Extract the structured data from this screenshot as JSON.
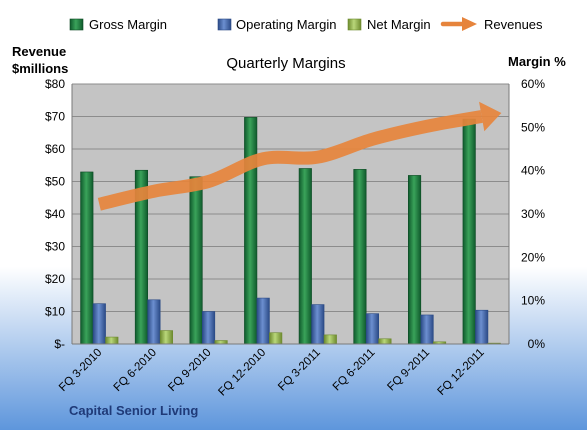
{
  "chart_data": {
    "type": "bar",
    "title": "Quarterly Margins",
    "company": "Capital Senior Living",
    "left_axis_label": [
      "Revenue",
      "$millions"
    ],
    "right_axis_label": "Margin %",
    "categories": [
      "FQ 3-2010",
      "FQ 6-2010",
      "FQ 9-2010",
      "FQ 12-2010",
      "FQ 3-2011",
      "FQ 6-2011",
      "FQ 9-2011",
      "FQ 12-2011"
    ],
    "left_ticks": [
      "$-",
      "$10",
      "$20",
      "$30",
      "$40",
      "$50",
      "$60",
      "$70",
      "$80"
    ],
    "right_ticks": [
      "0%",
      "10%",
      "20%",
      "30%",
      "40%",
      "50%",
      "60%"
    ],
    "ylim_left": [
      0,
      80
    ],
    "ylim_right": [
      0,
      60
    ],
    "grid": true,
    "legend_position": "top",
    "series": [
      {
        "name": "Gross Margin",
        "axis": "right",
        "kind": "bar",
        "color": "#2e8b4a",
        "values": [
          39.7,
          40.1,
          38.6,
          52.3,
          40.5,
          40.3,
          38.9,
          51.9
        ]
      },
      {
        "name": "Operating Margin",
        "axis": "right",
        "kind": "bar",
        "color": "#4f72b8",
        "values": [
          9.3,
          10.2,
          7.5,
          10.6,
          9.1,
          7.0,
          6.7,
          7.8
        ]
      },
      {
        "name": "Net Margin",
        "axis": "right",
        "kind": "bar",
        "color": "#9bbb59",
        "values": [
          1.6,
          3.1,
          0.8,
          2.6,
          2.1,
          1.2,
          0.5,
          0.2
        ]
      },
      {
        "name": "Revenues",
        "axis": "left",
        "kind": "arrow-line",
        "color": "#e6843c",
        "values": [
          43,
          47,
          50,
          57,
          57.5,
          63,
          67,
          70
        ]
      }
    ],
    "colors": {
      "plot_background": "#c4c4c4",
      "page_gradient_top": "#ffffff",
      "page_gradient_bottom": "#5e96dc"
    }
  }
}
